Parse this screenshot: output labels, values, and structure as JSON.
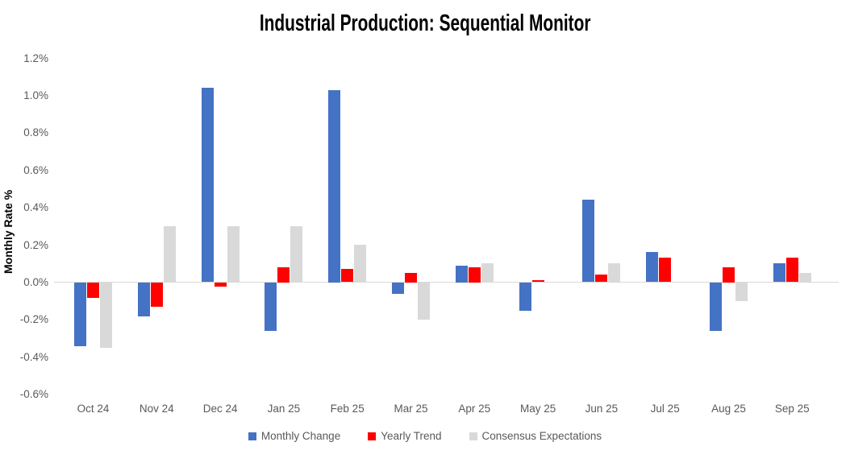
{
  "chart_data": {
    "type": "bar",
    "title": "Industrial Production: Sequential Monitor",
    "xlabel": "",
    "ylabel": "Monthly Rate %",
    "ylim": [
      -0.6,
      1.2
    ],
    "ytick_step": 0.2,
    "ytick_labels": [
      "1.2%",
      "1.0%",
      "0.8%",
      "0.6%",
      "0.4%",
      "0.2%",
      "0.0%",
      "-0.2%",
      "-0.4%",
      "-0.6%"
    ],
    "grid": false,
    "legend_position": "bottom",
    "categories": [
      "Oct 24",
      "Nov 24",
      "Dec 24",
      "Jan 25",
      "Feb 25",
      "Mar 25",
      "Apr 25",
      "May 25",
      "Jun 25",
      "Jul 25",
      "Aug 25",
      "Sep 25"
    ],
    "series": [
      {
        "name": "Monthly Change",
        "color": "#4472C4",
        "values": [
          -0.34,
          -0.18,
          1.04,
          -0.26,
          1.03,
          -0.06,
          0.09,
          -0.15,
          0.44,
          0.16,
          -0.26,
          0.1
        ]
      },
      {
        "name": "Yearly Trend",
        "color": "#FF0000",
        "values": [
          -0.08,
          -0.13,
          -0.02,
          0.08,
          0.07,
          0.05,
          0.08,
          0.01,
          0.04,
          0.13,
          0.08,
          0.13
        ]
      },
      {
        "name": "Consensus Expectations",
        "color": "#D9D9D9",
        "values": [
          -0.35,
          0.3,
          0.3,
          0.3,
          0.2,
          -0.2,
          0.1,
          0.0,
          0.1,
          0.0,
          -0.1,
          0.05
        ]
      }
    ]
  },
  "colors": {
    "axis_line": "#D9D9D9",
    "tick_text": "#595959",
    "title_text": "#000000",
    "background": "#FFFFFF"
  }
}
